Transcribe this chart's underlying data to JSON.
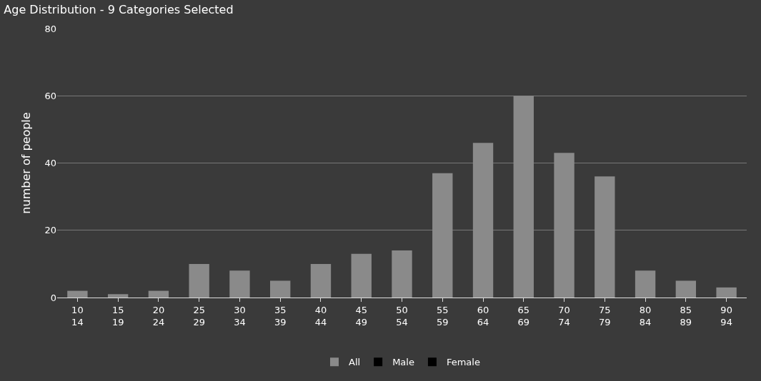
{
  "chart_data": {
    "type": "bar",
    "title": "Age Distribution - 9 Categories Selected",
    "ylabel": "number of people",
    "categories": [
      "10\n14",
      "15\n19",
      "20\n24",
      "25\n29",
      "30\n34",
      "35\n39",
      "40\n44",
      "45\n49",
      "50\n54",
      "55\n59",
      "60\n64",
      "65\n69",
      "70\n74",
      "75\n79",
      "80\n84",
      "85\n89",
      "90\n94"
    ],
    "series": [
      {
        "name": "All",
        "color": "#8a8a8a",
        "values": [
          2,
          1,
          2,
          10,
          8,
          5,
          10,
          13,
          14,
          37,
          46,
          60,
          43,
          36,
          8,
          5,
          3
        ]
      },
      {
        "name": "Male",
        "color": "#000000",
        "values": [
          null,
          null,
          null,
          null,
          null,
          null,
          null,
          null,
          null,
          null,
          null,
          null,
          null,
          null,
          null,
          null,
          null
        ]
      },
      {
        "name": "Female",
        "color": "#000000",
        "values": [
          null,
          null,
          null,
          null,
          null,
          null,
          null,
          null,
          null,
          null,
          null,
          null,
          null,
          null,
          null,
          null,
          null
        ]
      }
    ],
    "ylim": [
      0,
      80
    ],
    "yticks": [
      0,
      20,
      40,
      60,
      80
    ],
    "grid": "y",
    "legend": "bottom"
  }
}
